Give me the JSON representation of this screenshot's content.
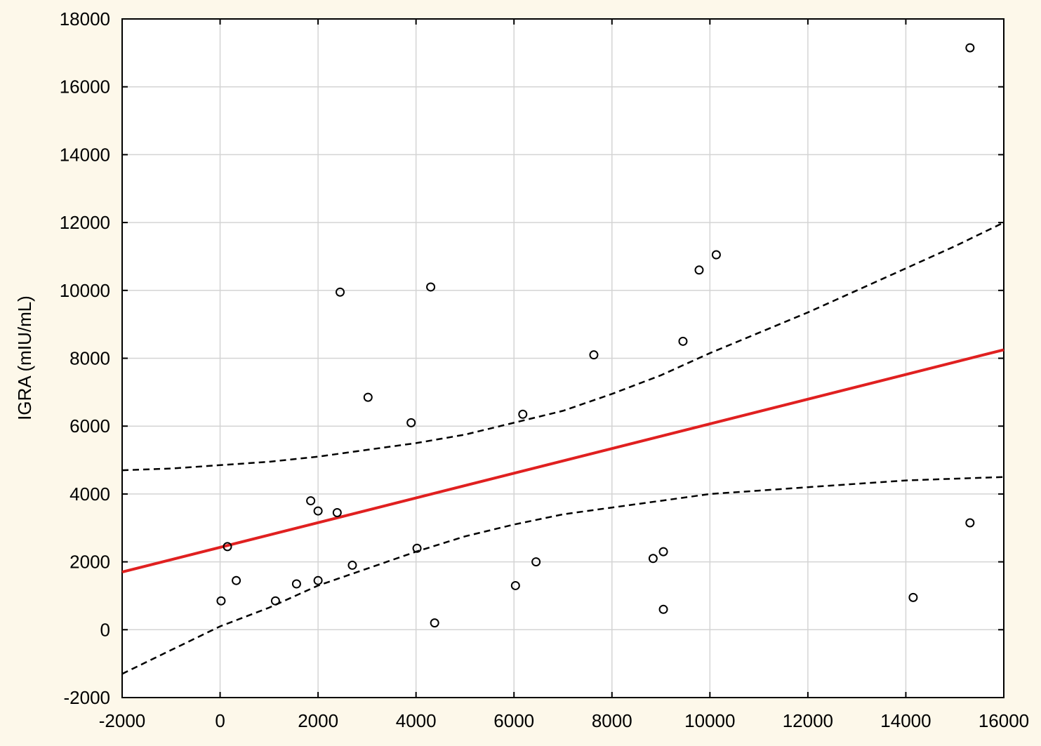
{
  "chart_data": {
    "type": "scatter",
    "ylabel": "IGRA (mIU/mL)",
    "xlabel": "",
    "title": "",
    "xlim": [
      -2000,
      16000
    ],
    "ylim": [
      -2000,
      18000
    ],
    "x_ticks": [
      "-2000",
      "0",
      "2000",
      "4000",
      "6000",
      "8000",
      "10000",
      "12000",
      "14000",
      "16000"
    ],
    "y_ticks": [
      "-2000",
      "0",
      "2000",
      "4000",
      "6000",
      "8000",
      "10000",
      "12000",
      "14000",
      "16000",
      "18000"
    ],
    "grid": true,
    "points": [
      {
        "x": 20,
        "y": 850
      },
      {
        "x": 150,
        "y": 2450
      },
      {
        "x": 330,
        "y": 1450
      },
      {
        "x": 1130,
        "y": 850
      },
      {
        "x": 1560,
        "y": 1350
      },
      {
        "x": 1850,
        "y": 3800
      },
      {
        "x": 2000,
        "y": 3500
      },
      {
        "x": 2000,
        "y": 1450
      },
      {
        "x": 2390,
        "y": 3450
      },
      {
        "x": 2450,
        "y": 9950
      },
      {
        "x": 2700,
        "y": 1900
      },
      {
        "x": 3020,
        "y": 6850
      },
      {
        "x": 3900,
        "y": 6100
      },
      {
        "x": 4020,
        "y": 2400
      },
      {
        "x": 4300,
        "y": 10100
      },
      {
        "x": 4380,
        "y": 200
      },
      {
        "x": 6030,
        "y": 1300
      },
      {
        "x": 6180,
        "y": 6350
      },
      {
        "x": 6450,
        "y": 2000
      },
      {
        "x": 7630,
        "y": 8100
      },
      {
        "x": 8840,
        "y": 2100
      },
      {
        "x": 9050,
        "y": 2300
      },
      {
        "x": 9050,
        "y": 600
      },
      {
        "x": 9450,
        "y": 8500
      },
      {
        "x": 9780,
        "y": 10600
      },
      {
        "x": 10130,
        "y": 11050
      },
      {
        "x": 14150,
        "y": 950
      },
      {
        "x": 15310,
        "y": 3150
      },
      {
        "x": 15310,
        "y": 17150
      }
    ],
    "regression_line": {
      "color": "#e02020",
      "x": [
        -2000,
        16000
      ],
      "y": [
        1700,
        8250
      ]
    },
    "confidence_upper": {
      "x": [
        -2000,
        -1000,
        0,
        1000,
        2000,
        3000,
        4000,
        5000,
        6000,
        7000,
        8000,
        9000,
        10000,
        11000,
        12000,
        13000,
        14000,
        15000,
        16000
      ],
      "y": [
        4700,
        4750,
        4850,
        4950,
        5100,
        5300,
        5500,
        5750,
        6100,
        6450,
        6950,
        7500,
        8150,
        8750,
        9350,
        10000,
        10650,
        11300,
        12000
      ]
    },
    "confidence_lower": {
      "x": [
        -2000,
        -1000,
        0,
        1000,
        2000,
        3000,
        4000,
        5000,
        6000,
        7000,
        8000,
        9000,
        10000,
        11000,
        12000,
        13000,
        14000,
        15000,
        16000
      ],
      "y": [
        -1300,
        -600,
        100,
        650,
        1300,
        1800,
        2300,
        2750,
        3100,
        3400,
        3600,
        3800,
        4000,
        4100,
        4200,
        4300,
        4400,
        4450,
        4500
      ]
    }
  }
}
